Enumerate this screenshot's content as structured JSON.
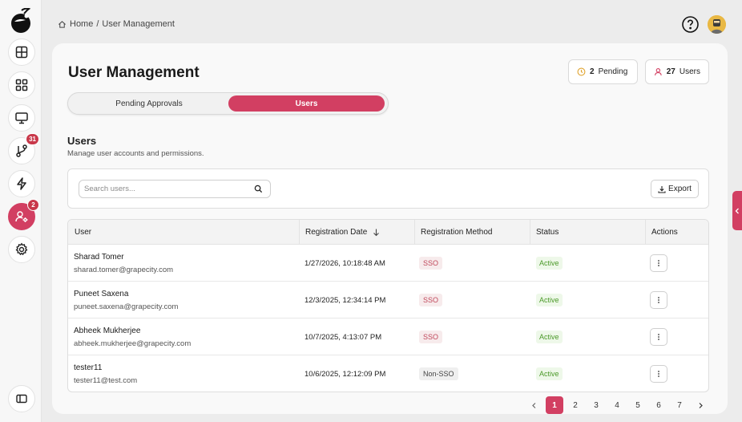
{
  "breadcrumb": {
    "home": "Home",
    "separator": "/",
    "current": "User Management"
  },
  "sidebar": {
    "items": [
      {
        "name": "dashboard",
        "icon": "layout-grid-icon"
      },
      {
        "name": "widgets",
        "icon": "apps-icon"
      },
      {
        "name": "monitor",
        "icon": "monitor-icon"
      },
      {
        "name": "pipelines",
        "icon": "git-branch-icon",
        "badge": "31"
      },
      {
        "name": "actions",
        "icon": "lightning-icon"
      },
      {
        "name": "user-management",
        "icon": "user-settings-icon",
        "badge": "2",
        "active": true
      },
      {
        "name": "settings",
        "icon": "gear-icon"
      }
    ]
  },
  "header": {
    "title": "User Management"
  },
  "stats": {
    "pending_count": "2",
    "pending_label": "Pending",
    "users_count": "27",
    "users_label": "Users"
  },
  "tabs": {
    "pending": "Pending Approvals",
    "users": "Users"
  },
  "section": {
    "title": "Users",
    "subtitle": "Manage user accounts and permissions."
  },
  "search": {
    "placeholder": "Search users...",
    "value": ""
  },
  "toolbar": {
    "export_label": "Export"
  },
  "table": {
    "columns": [
      "User",
      "Registration Date",
      "Registration Method",
      "Status",
      "Actions"
    ],
    "rows": [
      {
        "name": "Sharad Tomer",
        "email": "sharad.tomer@grapecity.com",
        "date": "1/27/2026, 10:18:48 AM",
        "method": "SSO",
        "status": "Active"
      },
      {
        "name": "Puneet Saxena",
        "email": "puneet.saxena@grapecity.com",
        "date": "12/3/2025, 12:34:14 PM",
        "method": "SSO",
        "status": "Active"
      },
      {
        "name": "Abheek Mukherjee",
        "email": "abheek.mukherjee@grapecity.com",
        "date": "10/7/2025, 4:13:07 PM",
        "method": "SSO",
        "status": "Active"
      },
      {
        "name": "tester11",
        "email": "tester11@test.com",
        "date": "10/6/2025, 12:12:09 PM",
        "method": "Non-SSO",
        "status": "Active"
      }
    ]
  },
  "pagination": {
    "pages": [
      "1",
      "2",
      "3",
      "4",
      "5",
      "6",
      "7"
    ],
    "current": "1"
  },
  "colors": {
    "accent": "#d23f62",
    "active_green": "#4c9a2a",
    "sso_red": "#c0485b"
  }
}
